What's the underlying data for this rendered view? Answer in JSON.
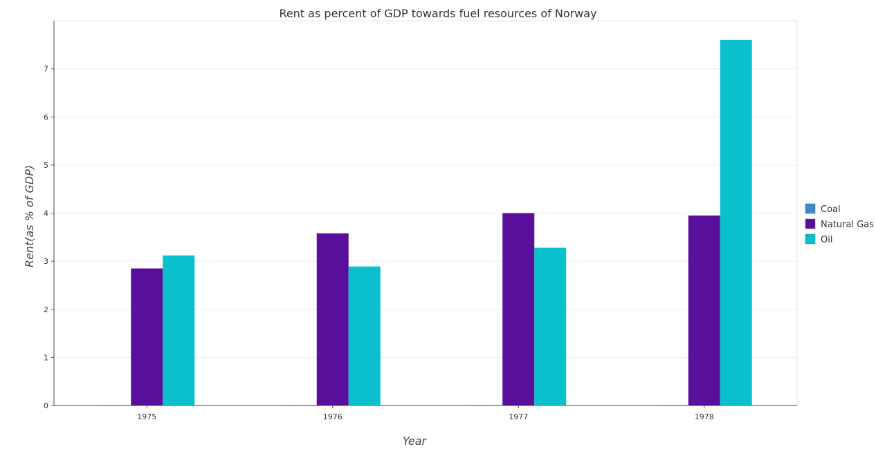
{
  "chart_data": {
    "type": "bar",
    "title": "Rent as percent of GDP towards fuel resources of Norway",
    "xlabel": "Year",
    "ylabel": "Rent(as % of GDP)",
    "categories": [
      "1975",
      "1976",
      "1977",
      "1978"
    ],
    "ylim": [
      0,
      8
    ],
    "yticks": [
      0,
      1,
      2,
      3,
      4,
      5,
      6,
      7
    ],
    "grid": true,
    "legend_position": "right",
    "series": [
      {
        "name": "Coal",
        "color": "#3d8ac6",
        "values": [
          0.004,
          0.006,
          0.004,
          0.001
        ]
      },
      {
        "name": "Natural Gas",
        "color": "#5a0f9c",
        "values": [
          2.85,
          3.58,
          4.0,
          3.95
        ]
      },
      {
        "name": "Oil",
        "color": "#0ac0cc",
        "values": [
          3.12,
          2.89,
          3.28,
          7.6
        ]
      }
    ]
  }
}
